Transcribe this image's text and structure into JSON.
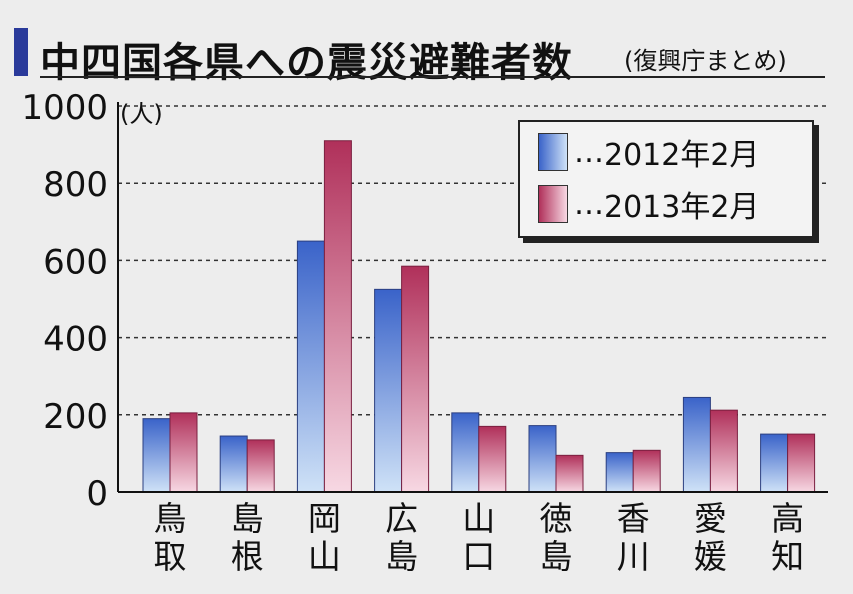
{
  "title": "中四国各県への震災避難者数",
  "subtitle": "(復興庁まとめ)",
  "chart_data": {
    "type": "bar",
    "unit": "(人)",
    "categories": [
      "鳥取",
      "島根",
      "岡山",
      "広島",
      "山口",
      "徳島",
      "香川",
      "愛媛",
      "高知"
    ],
    "series": [
      {
        "name": "2012年2月",
        "values": [
          190,
          145,
          650,
          525,
          205,
          172,
          102,
          245,
          150
        ]
      },
      {
        "name": "2013年2月",
        "values": [
          205,
          135,
          910,
          585,
          170,
          95,
          108,
          212,
          150
        ]
      }
    ],
    "ylim": [
      0,
      1000
    ],
    "yticks": [
      0,
      200,
      400,
      600,
      800,
      1000
    ],
    "grid": true,
    "legend_position": "top-right",
    "legend": [
      {
        "prefix": "…",
        "label": "2012年2月"
      },
      {
        "prefix": "…",
        "label": "2013年2月"
      }
    ],
    "colors": {
      "2012年2月": "#3a63c9",
      "2013年2月": "#b0305a"
    }
  }
}
